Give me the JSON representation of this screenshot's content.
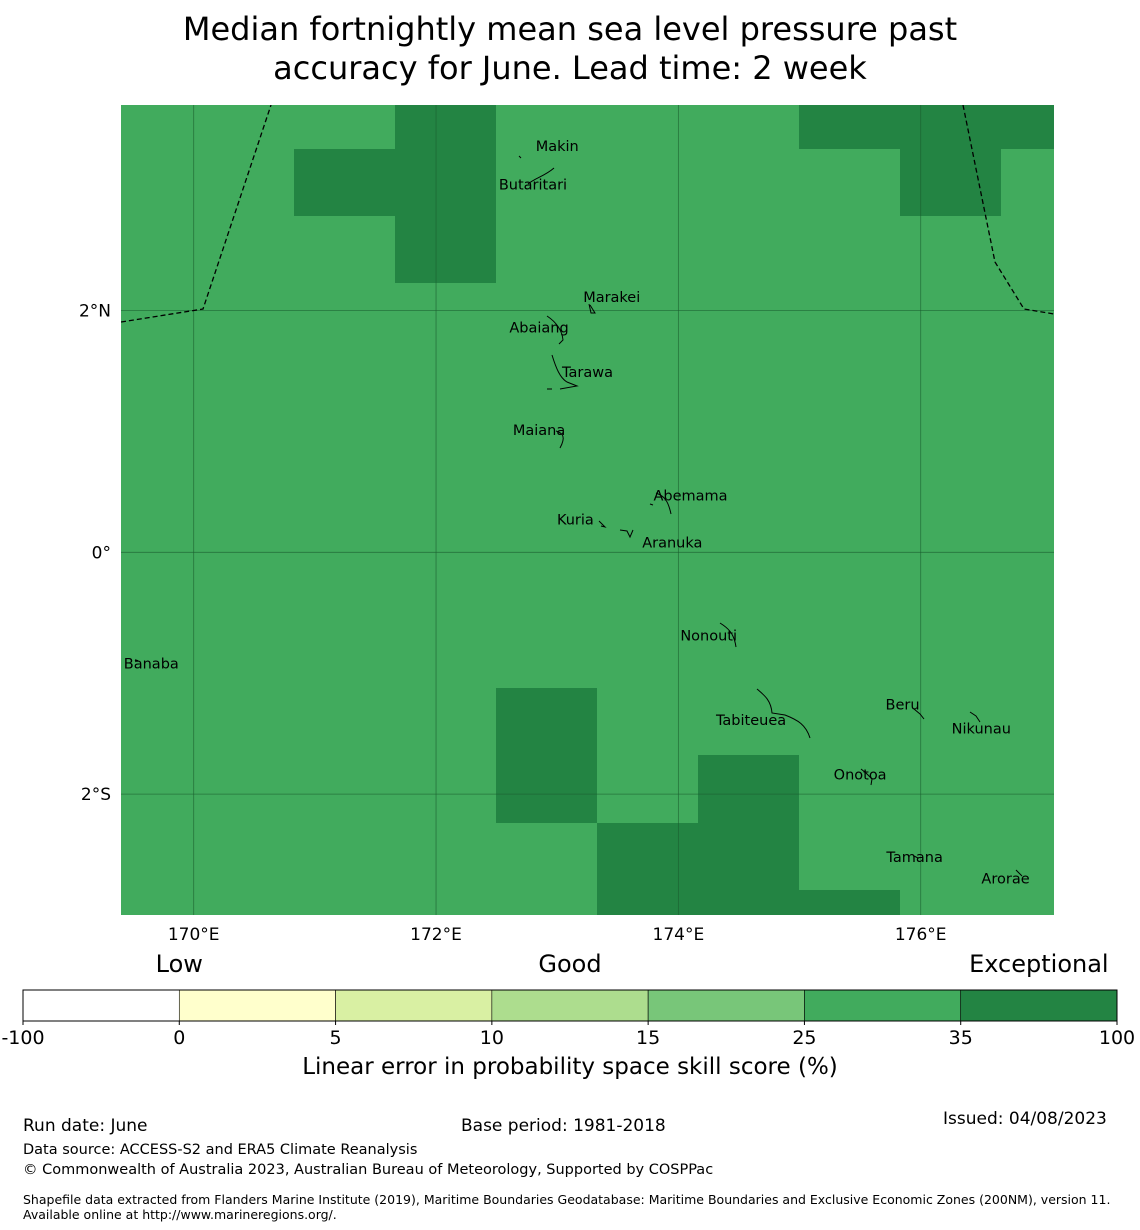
{
  "title": {
    "line1": "Median fortnightly mean sea level pressure past",
    "line2": "accuracy for June. Lead time: 2 week"
  },
  "map": {
    "lon_range": [
      169.4,
      177.1
    ],
    "lat_range": [
      -3.0,
      3.7
    ],
    "x_ticks": [
      {
        "value": 170,
        "label": "170°E"
      },
      {
        "value": 172,
        "label": "172°E"
      },
      {
        "value": 174,
        "label": "174°E"
      },
      {
        "value": 176,
        "label": "176°E"
      }
    ],
    "y_ticks": [
      {
        "value": 2,
        "label": "2°N"
      },
      {
        "value": 0,
        "label": "0°"
      },
      {
        "value": -2,
        "label": "2°S"
      }
    ],
    "colors": {
      "good_35": "#41ab5d",
      "exceptional_100": "#238443",
      "gridline": "#1a5c2e",
      "boundary": "#000000"
    },
    "places": [
      {
        "name": "Makin",
        "lon": 173.0,
        "lat": 3.32
      },
      {
        "name": "Butaritari",
        "lon": 172.8,
        "lat": 3.0
      },
      {
        "name": "Marakei",
        "lon": 173.45,
        "lat": 2.07
      },
      {
        "name": "Abaiang",
        "lon": 172.85,
        "lat": 1.82
      },
      {
        "name": "Tarawa",
        "lon": 173.25,
        "lat": 1.45
      },
      {
        "name": "Maiana",
        "lon": 172.85,
        "lat": 0.97
      },
      {
        "name": "Abemama",
        "lon": 174.1,
        "lat": 0.43
      },
      {
        "name": "Kuria",
        "lon": 173.15,
        "lat": 0.23
      },
      {
        "name": "Aranuka",
        "lon": 173.95,
        "lat": 0.04
      },
      {
        "name": "Nonouti",
        "lon": 174.25,
        "lat": -0.73
      },
      {
        "name": "Banaba",
        "lon": 169.65,
        "lat": -0.96
      },
      {
        "name": "Beru",
        "lon": 175.85,
        "lat": -1.3
      },
      {
        "name": "Nikunau",
        "lon": 176.5,
        "lat": -1.5
      },
      {
        "name": "Tabiteuea",
        "lon": 174.6,
        "lat": -1.43
      },
      {
        "name": "Onotoa",
        "lon": 175.5,
        "lat": -1.88
      },
      {
        "name": "Tamana",
        "lon": 175.95,
        "lat": -2.56
      },
      {
        "name": "Arorae",
        "lon": 176.7,
        "lat": -2.74
      }
    ]
  },
  "colorbar": {
    "categories": [
      {
        "label": "Low",
        "at": 1
      },
      {
        "label": "Good",
        "at": 3.5
      },
      {
        "label": "Exceptional",
        "at": 6.5
      }
    ],
    "boundaries": [
      "-100",
      "0",
      "5",
      "10",
      "15",
      "25",
      "35",
      "100"
    ],
    "colors": [
      "#ffffff",
      "#ffffcc",
      "#d9f0a3",
      "#addd8e",
      "#78c679",
      "#41ab5d",
      "#238443"
    ],
    "label": "Linear error in probability space skill score (%)"
  },
  "footer": {
    "run_date": "Run date: June",
    "base_period": "Base period: 1981-2018",
    "issued": "Issued: 04/08/2023",
    "data_source": "Data source: ACCESS-S2 and ERA5 Climate Reanalysis",
    "copyright": "© Commonwealth of Australia 2023, Australian Bureau of Meteorology, Supported by COSPPac",
    "shapefile": "Shapefile data extracted from Flanders Marine Institute (2019), Maritime Boundaries Geodatabase: Maritime Boundaries and Exclusive Economic Zones (200NM), version 11. Available online at http://www.marineregions.org/."
  }
}
